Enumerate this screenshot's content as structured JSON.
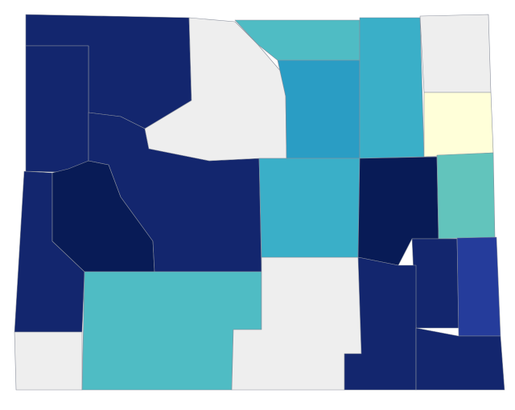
{
  "regions": [
    {
      "color": "#13266e"
    },
    {
      "color": "#13266e"
    },
    {
      "color": "#13266e"
    },
    {
      "color": "#081b56"
    },
    {
      "color": "#13266e"
    },
    {
      "color": "#eeeeee"
    },
    {
      "color": "#4fbcc4"
    },
    {
      "color": "#eeeeee"
    },
    {
      "color": "#eeeeee"
    },
    {
      "color": "#4fbcc4"
    },
    {
      "color": "#2a9dc4"
    },
    {
      "color": "#3aafc8"
    },
    {
      "color": "#eeeeee"
    },
    {
      "color": "#ffffd9"
    },
    {
      "color": "#3aafc8"
    },
    {
      "color": "#081b56"
    },
    {
      "color": "#62c4bc"
    },
    {
      "color": "#13266e"
    },
    {
      "color": "#253c9b"
    },
    {
      "color": "#13266e"
    },
    {
      "color": "#13266e"
    }
  ]
}
